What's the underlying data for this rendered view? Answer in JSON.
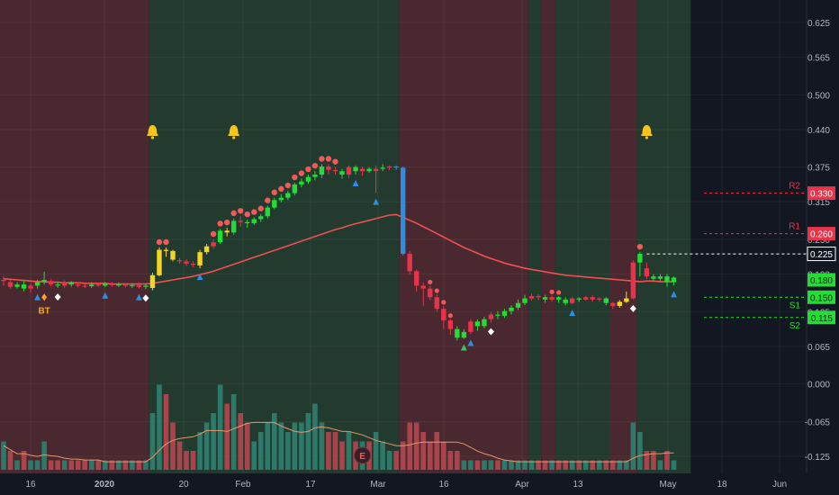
{
  "chart_data": {
    "type": "candlestick",
    "colors": {
      "bg": "#131722",
      "bull_zone": "#233a2e",
      "bear_zone": "#4a2830",
      "bull": "#22dd33",
      "bear": "#e8334a",
      "yellow": "#f5d523",
      "blue": "#2a8fe0",
      "ma": "#f05050",
      "vol_ma": "#e6956a",
      "vol_up": "#2e7a6a",
      "vol_down": "#a8444c",
      "axis_text": "#b2b5be"
    },
    "y_ticks": [
      "0.625",
      "0.565",
      "0.500",
      "0.440",
      "0.375",
      "0.315",
      "0.250",
      "0.190",
      "0.125",
      "0.065",
      "0.000",
      "-0.065",
      "-0.125"
    ],
    "x_ticks": [
      {
        "label": "16",
        "bold": false
      },
      {
        "label": "2020",
        "bold": true
      },
      {
        "label": "20",
        "bold": false
      },
      {
        "label": "Feb",
        "bold": false
      },
      {
        "label": "17",
        "bold": false
      },
      {
        "label": "Mar",
        "bold": false
      },
      {
        "label": "16",
        "bold": false
      },
      {
        "label": "Apr",
        "bold": false
      },
      {
        "label": "13",
        "bold": false
      },
      {
        "label": "May",
        "bold": false
      },
      {
        "label": "18",
        "bold": false
      },
      {
        "label": "Jun",
        "bold": false
      }
    ],
    "price_labels": [
      {
        "text": "0.330",
        "value": 0.33,
        "color": "#e8334a",
        "name": "R2"
      },
      {
        "text": "0.260",
        "value": 0.26,
        "color": "#e8334a",
        "name": "R1"
      },
      {
        "text": "0.225",
        "value": 0.225,
        "color": "#ffffff",
        "name": ""
      },
      {
        "text": "0.180",
        "value": 0.18,
        "color": "#22dd33",
        "name": ""
      },
      {
        "text": "0.150",
        "value": 0.15,
        "color": "#22dd33",
        "name": ""
      },
      {
        "text": "0.115",
        "value": 0.115,
        "color": "#22dd33",
        "name": "S2"
      }
    ],
    "level_names": {
      "r2": "R2",
      "r1": "R1",
      "s1": "S1",
      "s2": "S2"
    },
    "annotations": {
      "bt": "BT",
      "earnings": "E"
    },
    "candles": [
      [
        0.18,
        0.18,
        0.186,
        0.17
      ],
      [
        0.176,
        0.168,
        0.18,
        0.165
      ],
      [
        0.168,
        0.172,
        0.176,
        0.165
      ],
      [
        0.172,
        0.165,
        0.178,
        0.16
      ],
      [
        0.165,
        0.17,
        0.174,
        0.158
      ],
      [
        0.17,
        0.176,
        0.18,
        0.165
      ],
      [
        0.176,
        0.18,
        0.194,
        0.172
      ],
      [
        0.178,
        0.172,
        0.182,
        0.168
      ],
      [
        0.172,
        0.17,
        0.176,
        0.166
      ],
      [
        0.17,
        0.176,
        0.179,
        0.166
      ],
      [
        0.176,
        0.172,
        0.178,
        0.168
      ],
      [
        0.172,
        0.17,
        0.176,
        0.167
      ],
      [
        0.17,
        0.169,
        0.174,
        0.166
      ],
      [
        0.169,
        0.172,
        0.176,
        0.166
      ],
      [
        0.172,
        0.17,
        0.175,
        0.168
      ],
      [
        0.17,
        0.173,
        0.176,
        0.168
      ],
      [
        0.173,
        0.171,
        0.176,
        0.168
      ],
      [
        0.171,
        0.172,
        0.175,
        0.168
      ],
      [
        0.172,
        0.17,
        0.174,
        0.167
      ],
      [
        0.17,
        0.171,
        0.174,
        0.166
      ],
      [
        0.171,
        0.168,
        0.175,
        0.165
      ],
      [
        0.168,
        0.17,
        0.173,
        0.164
      ],
      [
        0.166,
        0.188,
        0.192,
        0.162
      ],
      [
        0.188,
        0.232,
        0.236,
        0.186
      ],
      [
        0.232,
        0.23,
        0.236,
        0.22
      ],
      [
        0.23,
        0.215,
        0.232,
        0.212
      ],
      [
        0.214,
        0.212,
        0.218,
        0.208
      ],
      [
        0.212,
        0.208,
        0.216,
        0.204
      ],
      [
        0.208,
        0.206,
        0.212,
        0.202
      ],
      [
        0.205,
        0.228,
        0.232,
        0.2
      ],
      [
        0.228,
        0.238,
        0.242,
        0.224
      ],
      [
        0.238,
        0.245,
        0.25,
        0.234
      ],
      [
        0.245,
        0.265,
        0.268,
        0.242
      ],
      [
        0.265,
        0.262,
        0.27,
        0.255
      ],
      [
        0.262,
        0.282,
        0.286,
        0.258
      ],
      [
        0.282,
        0.28,
        0.29,
        0.272
      ],
      [
        0.28,
        0.278,
        0.284,
        0.27
      ],
      [
        0.278,
        0.285,
        0.288,
        0.275
      ],
      [
        0.285,
        0.29,
        0.294,
        0.28
      ],
      [
        0.29,
        0.305,
        0.308,
        0.286
      ],
      [
        0.305,
        0.318,
        0.322,
        0.302
      ],
      [
        0.318,
        0.322,
        0.328,
        0.314
      ],
      [
        0.322,
        0.33,
        0.334,
        0.318
      ],
      [
        0.33,
        0.345,
        0.348,
        0.326
      ],
      [
        0.345,
        0.35,
        0.355,
        0.34
      ],
      [
        0.35,
        0.358,
        0.362,
        0.346
      ],
      [
        0.358,
        0.362,
        0.368,
        0.352
      ],
      [
        0.362,
        0.376,
        0.38,
        0.356
      ],
      [
        0.376,
        0.37,
        0.38,
        0.362
      ],
      [
        0.37,
        0.368,
        0.375,
        0.362
      ],
      [
        0.368,
        0.362,
        0.372,
        0.355
      ],
      [
        0.362,
        0.375,
        0.378,
        0.356
      ],
      [
        0.375,
        0.368,
        0.378,
        0.362
      ],
      [
        0.368,
        0.372,
        0.376,
        0.36
      ],
      [
        0.372,
        0.368,
        0.375,
        0.365
      ],
      [
        0.368,
        0.372,
        0.378,
        0.33
      ],
      [
        0.372,
        0.374,
        0.38,
        0.368
      ],
      [
        0.374,
        0.376,
        0.378,
        0.37
      ],
      [
        0.376,
        0.374,
        0.378,
        0.37
      ],
      [
        0.374,
        0.225,
        0.376,
        0.222
      ],
      [
        0.225,
        0.195,
        0.23,
        0.19
      ],
      [
        0.195,
        0.17,
        0.198,
        0.16
      ],
      [
        0.17,
        0.165,
        0.175,
        0.135
      ],
      [
        0.165,
        0.15,
        0.17,
        0.145
      ],
      [
        0.15,
        0.13,
        0.155,
        0.125
      ],
      [
        0.13,
        0.11,
        0.135,
        0.095
      ],
      [
        0.11,
        0.095,
        0.112,
        0.085
      ],
      [
        0.095,
        0.08,
        0.1,
        0.075
      ],
      [
        0.08,
        0.09,
        0.095,
        0.078
      ],
      [
        0.09,
        0.108,
        0.112,
        0.086
      ],
      [
        0.108,
        0.1,
        0.112,
        0.092
      ],
      [
        0.1,
        0.112,
        0.116,
        0.096
      ],
      [
        0.112,
        0.12,
        0.124,
        0.106
      ],
      [
        0.12,
        0.118,
        0.126,
        0.112
      ],
      [
        0.118,
        0.126,
        0.13,
        0.114
      ],
      [
        0.126,
        0.132,
        0.136,
        0.12
      ],
      [
        0.132,
        0.14,
        0.146,
        0.128
      ],
      [
        0.14,
        0.148,
        0.154,
        0.136
      ],
      [
        0.148,
        0.152,
        0.156,
        0.144
      ],
      [
        0.152,
        0.15,
        0.155,
        0.145
      ],
      [
        0.15,
        0.146,
        0.154,
        0.14
      ],
      [
        0.146,
        0.15,
        0.153,
        0.142
      ],
      [
        0.15,
        0.146,
        0.152,
        0.14
      ],
      [
        0.146,
        0.14,
        0.15,
        0.136
      ],
      [
        0.14,
        0.148,
        0.15,
        0.138
      ],
      [
        0.148,
        0.146,
        0.15,
        0.142
      ],
      [
        0.146,
        0.15,
        0.152,
        0.144
      ],
      [
        0.15,
        0.146,
        0.153,
        0.142
      ],
      [
        0.146,
        0.148,
        0.15,
        0.142
      ],
      [
        0.148,
        0.14,
        0.15,
        0.136
      ],
      [
        0.14,
        0.135,
        0.142,
        0.13
      ],
      [
        0.135,
        0.142,
        0.145,
        0.132
      ],
      [
        0.142,
        0.148,
        0.16,
        0.14
      ],
      [
        0.148,
        0.21,
        0.214,
        0.146
      ],
      [
        0.21,
        0.225,
        0.228,
        0.186
      ],
      [
        0.2,
        0.186,
        0.21,
        0.182
      ],
      [
        0.186,
        0.182,
        0.19,
        0.178
      ],
      [
        0.182,
        0.186,
        0.19,
        0.178
      ],
      [
        0.186,
        0.176,
        0.19,
        0.168
      ],
      [
        0.176,
        0.184,
        0.186,
        0.17
      ]
    ],
    "candle_colors": "bbggbggbgbgbbgbgbgbgbgyyyybbbyybgygbggggggggggggbbgbgbgbgbBBbbbbbbbggbggbgggggbbgbggbgbbbgbyybgbg",
    "ma_values": [
      0.182,
      0.181,
      0.18,
      0.179,
      0.178,
      0.177,
      0.177,
      0.176,
      0.176,
      0.175,
      0.175,
      0.175,
      0.174,
      0.174,
      0.174,
      0.174,
      0.173,
      0.173,
      0.173,
      0.173,
      0.173,
      0.173,
      0.174,
      0.176,
      0.178,
      0.18,
      0.182,
      0.184,
      0.186,
      0.189,
      0.192,
      0.195,
      0.199,
      0.203,
      0.207,
      0.211,
      0.215,
      0.219,
      0.223,
      0.227,
      0.231,
      0.235,
      0.239,
      0.243,
      0.247,
      0.251,
      0.255,
      0.259,
      0.263,
      0.267,
      0.27,
      0.274,
      0.277,
      0.28,
      0.283,
      0.286,
      0.289,
      0.292,
      0.293,
      0.288,
      0.283,
      0.278,
      0.272,
      0.266,
      0.26,
      0.254,
      0.248,
      0.242,
      0.236,
      0.231,
      0.226,
      0.221,
      0.217,
      0.213,
      0.209,
      0.206,
      0.203,
      0.2,
      0.198,
      0.196,
      0.194,
      0.192,
      0.19,
      0.188,
      0.187,
      0.186,
      0.185,
      0.184,
      0.183,
      0.182,
      0.181,
      0.18,
      0.179,
      0.178,
      0.177,
      0.178,
      0.178,
      0.177,
      0.177,
      0.177
    ],
    "volumes": [
      3,
      2,
      1,
      2,
      1,
      1,
      3,
      1,
      1,
      1,
      1,
      1,
      1,
      1,
      1,
      1,
      1,
      1,
      1,
      1,
      1,
      1,
      6,
      9,
      8,
      5,
      3,
      2,
      2,
      4,
      5,
      6,
      9,
      7,
      8,
      6,
      5,
      3,
      4,
      5,
      6,
      5,
      4,
      5,
      5,
      6,
      7,
      5,
      4,
      4,
      3,
      4,
      3,
      3,
      3,
      4,
      3,
      2,
      2,
      3,
      5,
      5,
      4,
      3,
      4,
      3,
      2,
      2,
      1,
      1,
      1,
      1,
      1,
      1,
      1,
      1,
      1,
      1,
      1,
      1,
      1,
      1,
      1,
      1,
      1,
      1,
      1,
      1,
      1,
      1,
      1,
      1,
      1,
      5,
      4,
      2,
      2,
      1,
      2,
      1
    ],
    "zones": [
      {
        "from": 0,
        "to": 21,
        "kind": "bear"
      },
      {
        "from": 22,
        "to": 58,
        "kind": "bull"
      },
      {
        "from": 59,
        "to": 77,
        "kind": "bear"
      },
      {
        "from": 78,
        "to": 79,
        "kind": "bull"
      },
      {
        "from": 80,
        "to": 81,
        "kind": "bear"
      },
      {
        "from": 82,
        "to": 89,
        "kind": "bull"
      },
      {
        "from": 90,
        "to": 93,
        "kind": "bear"
      },
      {
        "from": 94,
        "to": 101,
        "kind": "bull"
      }
    ]
  }
}
